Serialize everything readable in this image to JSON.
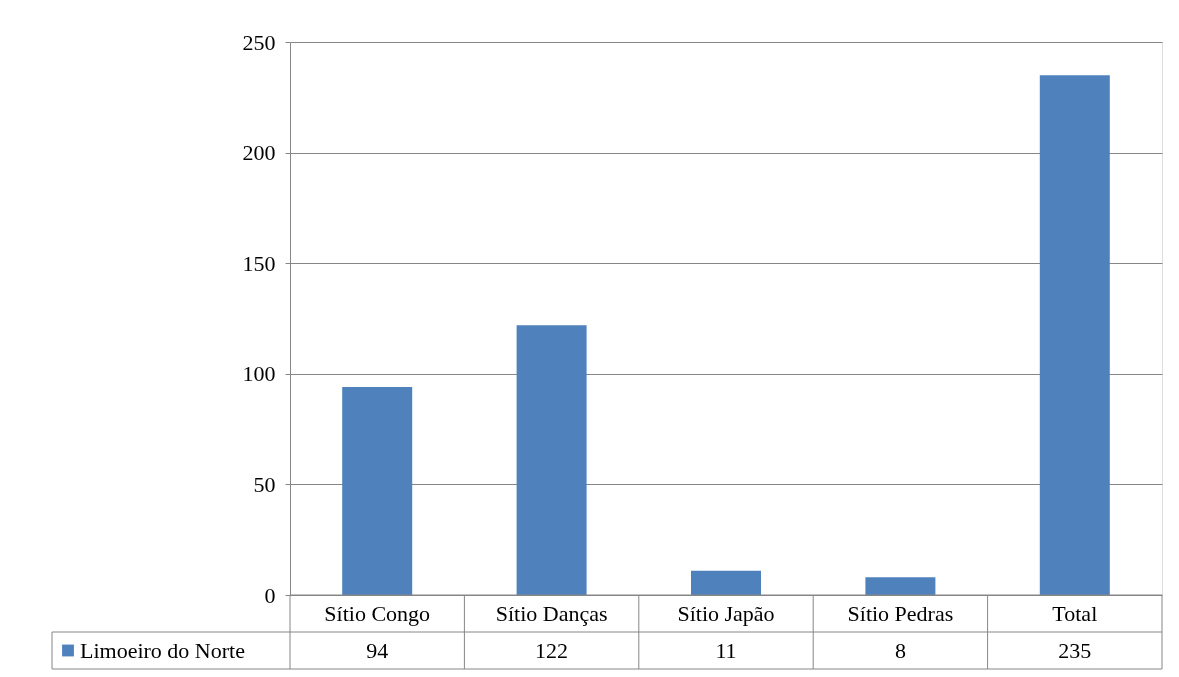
{
  "chart_data": {
    "type": "bar",
    "categories": [
      "Sítio Congo",
      "Sítio Danças",
      "Sítio Japão",
      "Sítio Pedras",
      "Total"
    ],
    "series": [
      {
        "name": "Limoeiro do Norte",
        "color": "#4f81bd",
        "values": [
          94,
          122,
          11,
          8,
          235
        ]
      }
    ],
    "ylim": [
      0,
      250
    ],
    "yticks": [
      0,
      50,
      100,
      150,
      200,
      250
    ],
    "grid": "y",
    "data_labels": true,
    "legend": "bottom"
  }
}
